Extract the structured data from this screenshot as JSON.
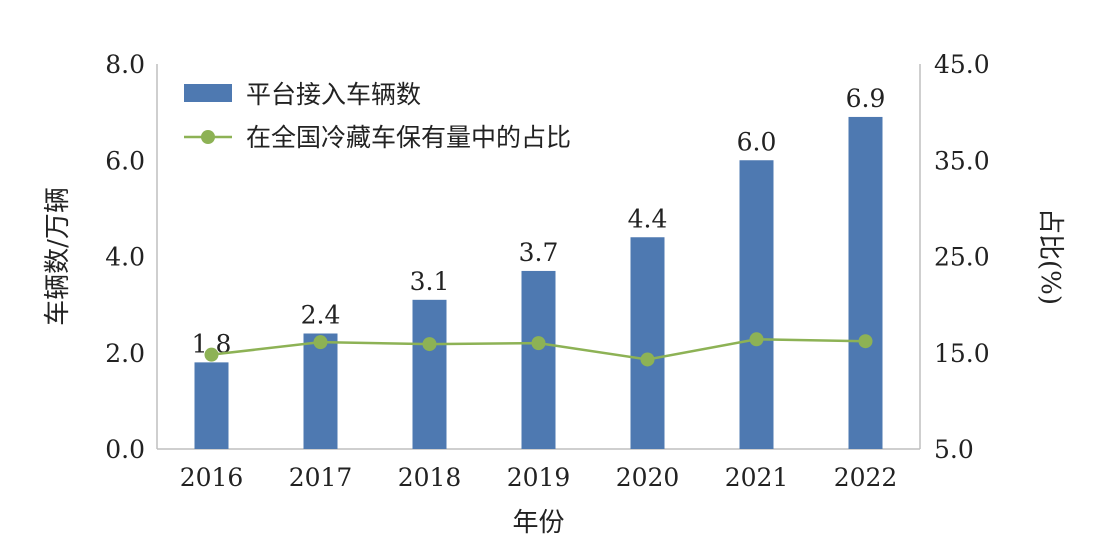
{
  "chart_data": {
    "type": "bar",
    "categories": [
      "2016",
      "2017",
      "2018",
      "2019",
      "2020",
      "2021",
      "2022"
    ],
    "series": [
      {
        "name": "平台接入车辆数",
        "type": "bar",
        "axis": "left",
        "color": "#4E79B1",
        "values": [
          1.8,
          2.4,
          3.1,
          3.7,
          4.4,
          6.0,
          6.9
        ],
        "labels": [
          "1.8",
          "2.4",
          "3.1",
          "3.7",
          "4.4",
          "6.0",
          "6.9"
        ]
      },
      {
        "name": "在全国冷藏车保有量中的占比",
        "type": "line",
        "axis": "right",
        "color": "#8DB255",
        "values": [
          14.8,
          16.1,
          15.9,
          16.0,
          14.3,
          16.4,
          16.2
        ]
      }
    ],
    "xlabel": "年份",
    "ylabel": "车辆数/万辆",
    "y2label": "占比(%)",
    "ylim": [
      0,
      8
    ],
    "y2lim": [
      5,
      45
    ],
    "yticks": [
      "0.0",
      "2.0",
      "4.0",
      "6.0",
      "8.0"
    ],
    "y2ticks": [
      "5.0",
      "15.0",
      "25.0",
      "35.0",
      "45.0"
    ],
    "grid": false,
    "legend_position": "top-left"
  }
}
